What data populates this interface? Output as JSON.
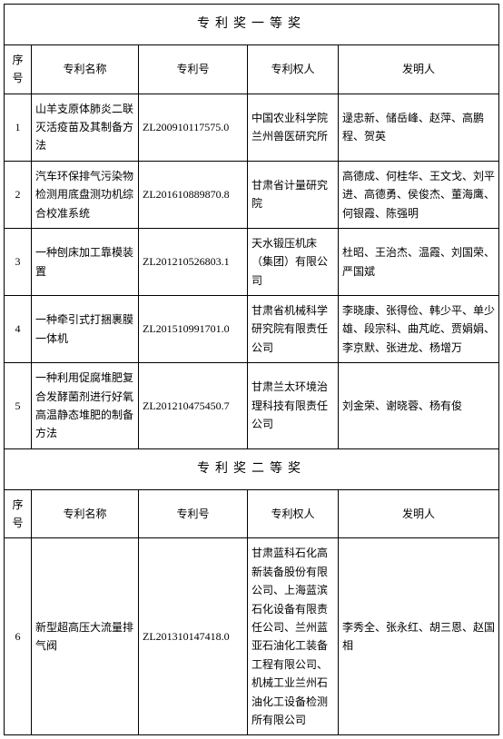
{
  "sections": [
    {
      "title": "专利奖一等奖"
    },
    {
      "title": "专利奖二等奖"
    }
  ],
  "headers": {
    "idx": "序号",
    "name": "专利名称",
    "num": "专利号",
    "owner": "专利权人",
    "inv": "发明人"
  },
  "rows1": [
    {
      "idx": "1",
      "name": "山羊支原体肺炎二联灭活疫苗及其制备方法",
      "num": "ZL200910117575.0",
      "owner": "中国农业科学院兰州兽医研究所",
      "inv": "逯忠新、储岳峰、赵萍、高鹏程、贺英"
    },
    {
      "idx": "2",
      "name": "汽车环保排气污染物检测用底盘测功机综合校准系统",
      "num": "ZL201610889870.8",
      "owner": "甘肃省计量研究院",
      "inv": "高德成、何桂华、王文戈、刘平进、高德勇、侯俊杰、董海鹰、何银霞、陈强明"
    },
    {
      "idx": "3",
      "name": "一种刨床加工靠模装置",
      "num": "ZL201210526803.1",
      "owner": "天水锻压机床（集团）有限公司",
      "inv": "杜昭、王治杰、温霞、刘国荣、严国斌"
    },
    {
      "idx": "4",
      "name": "一种牵引式打捆裹膜一体机",
      "num": "ZL201510991701.0",
      "owner": "甘肃省机械科学研究院有限责任公司",
      "inv": "李晓康、张得俭、韩少平、单少雄、段宗科、曲芃屹、贾娟娟、李京默、张进龙、杨增万"
    },
    {
      "idx": "5",
      "name": "一种利用促腐堆肥复合发酵菌剂进行好氧高温静态堆肥的制备方法",
      "num": "ZL201210475450.7",
      "owner": "甘肃兰太环境治理科技有限责任公司",
      "inv": "刘金荣、谢晓蓉、杨有俊"
    }
  ],
  "rows2": [
    {
      "idx": "6",
      "name": "新型超高压大流量排气阀",
      "num": "ZL201310147418.0",
      "owner": "甘肃蓝科石化高新装备股份有限公司、上海蓝滨石化设备有限责任公司、兰州蓝亚石油化工装备工程有限公司、机械工业兰州石油化工设备检测所有限公司",
      "inv": "李秀全、张永红、胡三恩、赵国相"
    }
  ]
}
